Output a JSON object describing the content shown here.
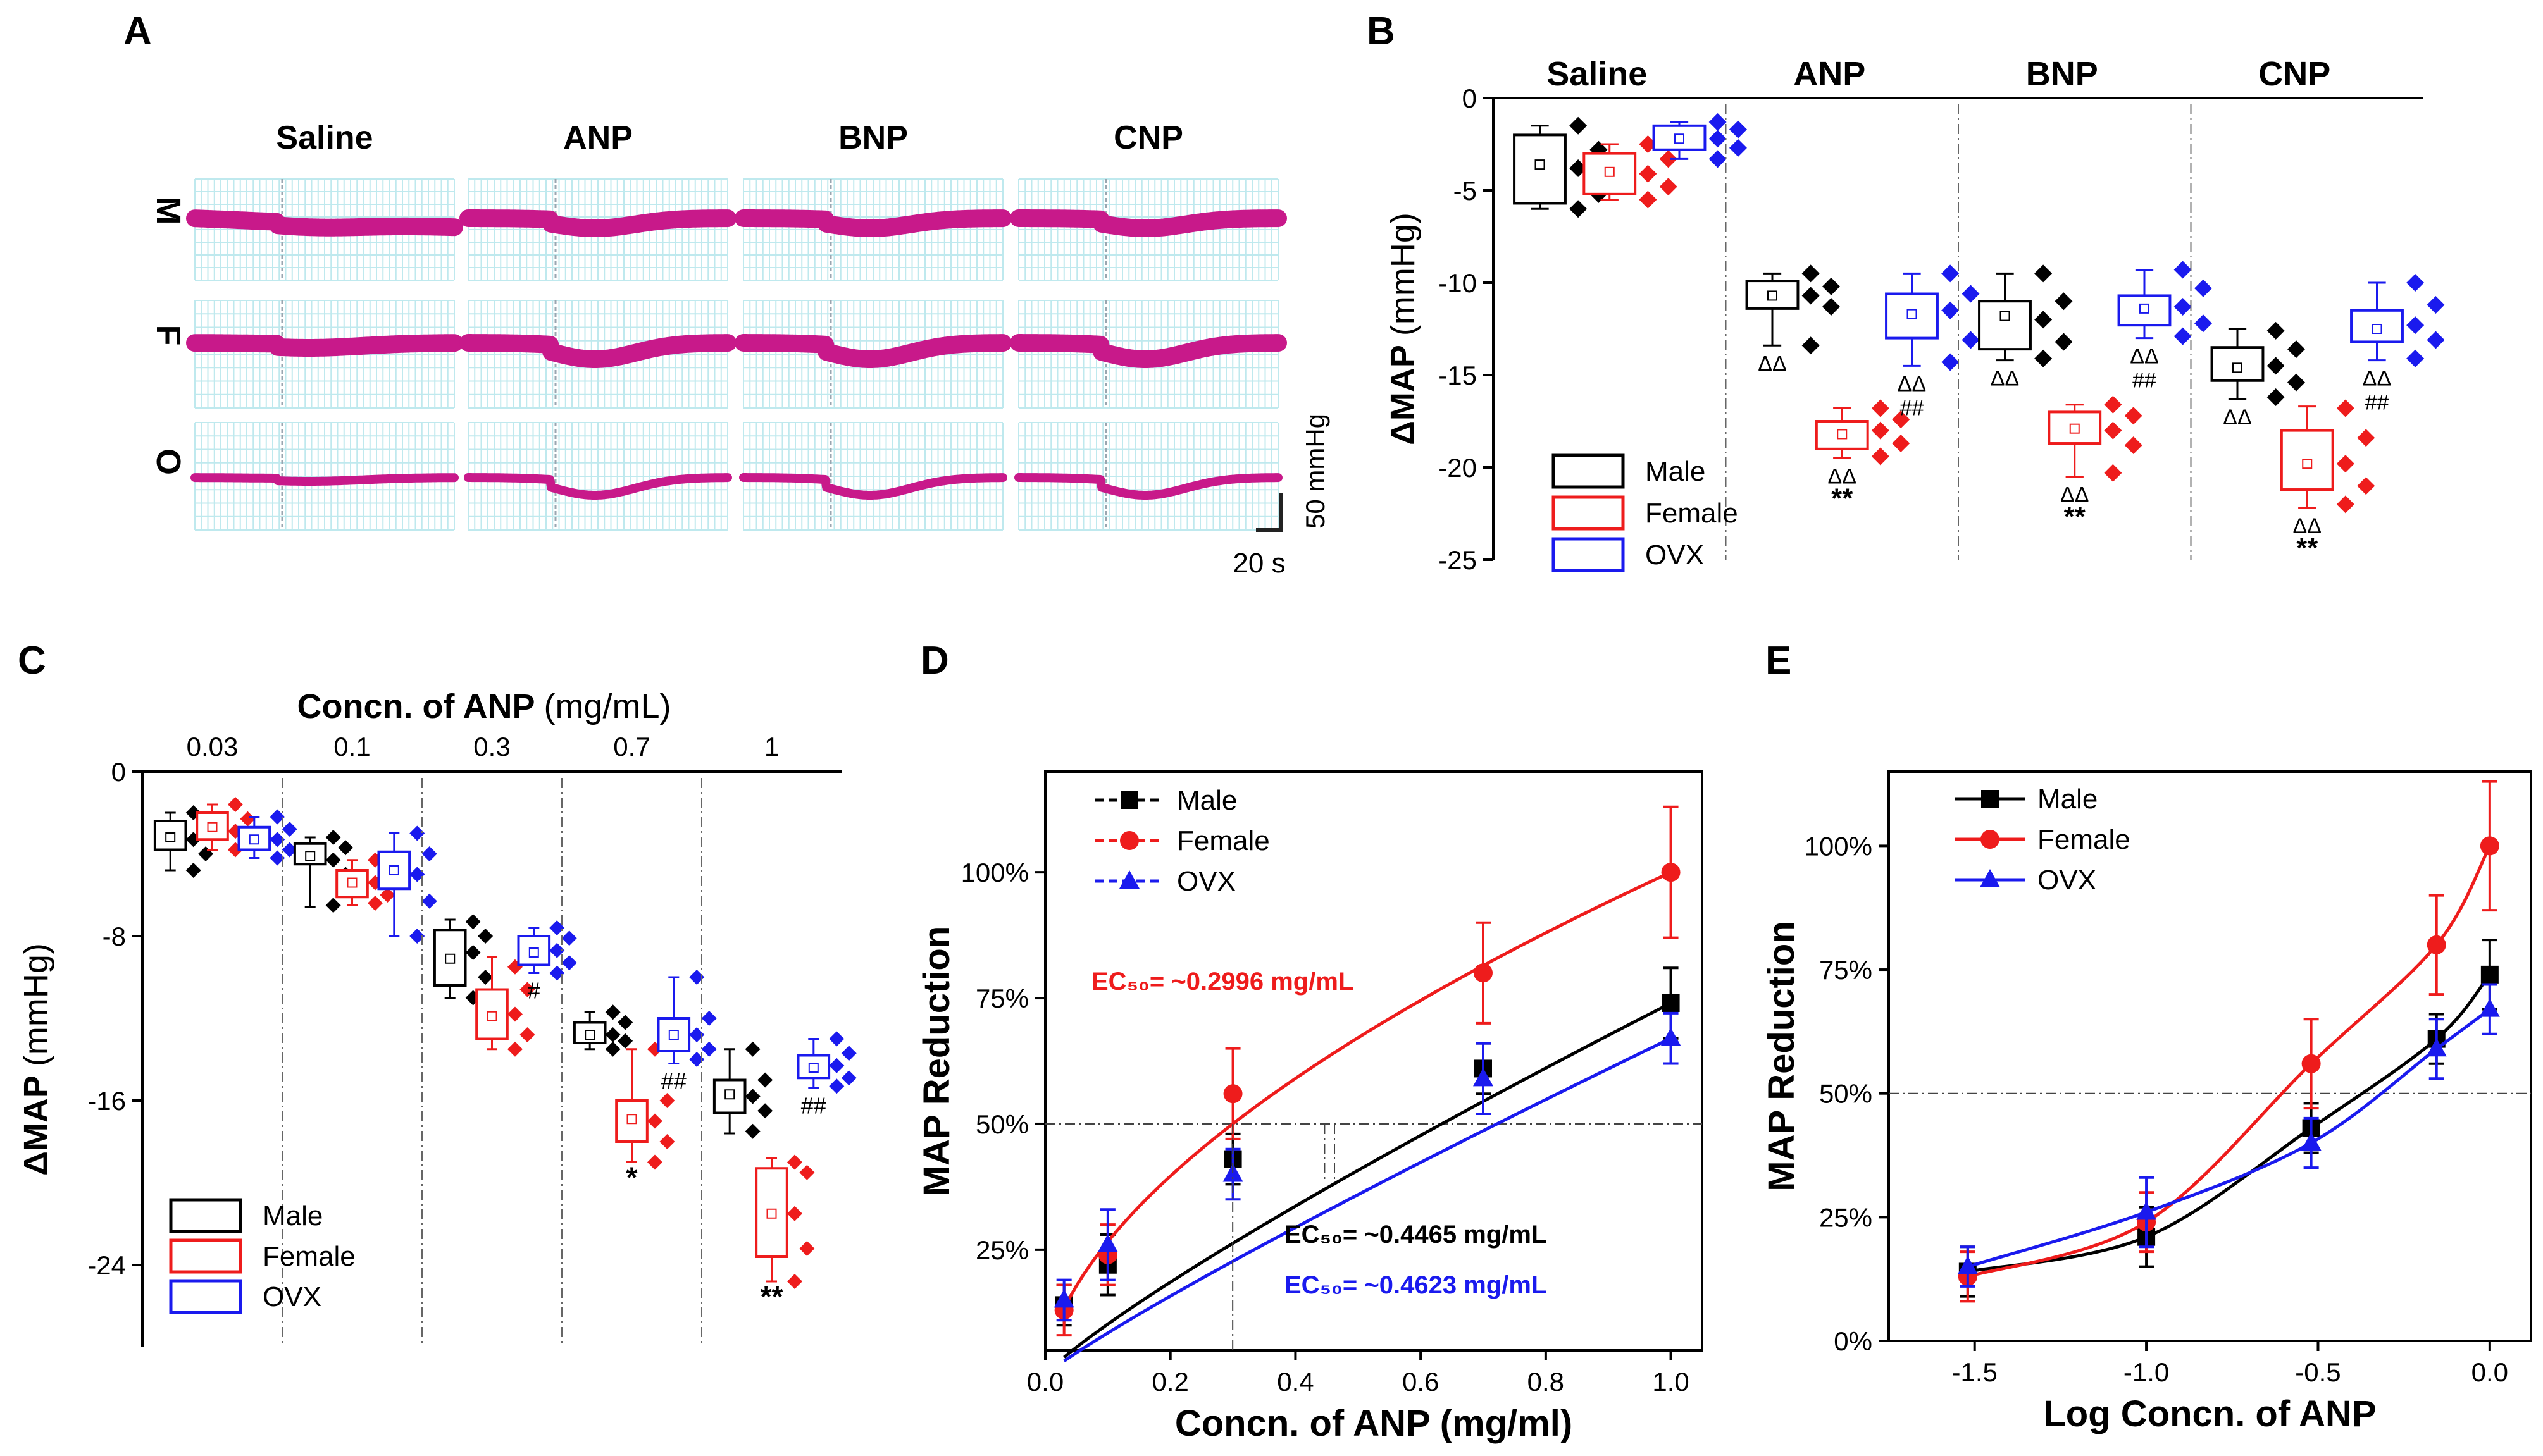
{
  "colors": {
    "male": "#000000",
    "female": "#ee1c1c",
    "ovx": "#1a1aee",
    "trace": "#c8198a",
    "grid": "#bfe9ee"
  },
  "panels": {
    "A": {
      "letter": "A",
      "columns": [
        "Saline",
        "ANP",
        "BNP",
        "CNP"
      ],
      "rows": [
        "M",
        "F",
        "O"
      ],
      "scale_y": "50 mmHg",
      "scale_x": "20 s"
    },
    "B": {
      "letter": "B"
    },
    "C": {
      "letter": "C"
    },
    "D": {
      "letter": "D"
    },
    "E": {
      "letter": "E"
    }
  },
  "chart_data": [
    {
      "id": "B",
      "type": "box",
      "ylabel": "ΔMAP (mmHg)",
      "ylim": [
        -25,
        0
      ],
      "yticks": [
        0,
        -5,
        -10,
        -15,
        -20,
        -25
      ],
      "categories": [
        "Saline",
        "ANP",
        "BNP",
        "CNP"
      ],
      "legend": [
        "Male",
        "Female",
        "OVX"
      ],
      "groups": [
        {
          "label": "Saline",
          "boxes": [
            {
              "series": "Male",
              "mean": -3.6,
              "q1": -5.7,
              "q3": -2.0,
              "min": -6.0,
              "max": -1.5,
              "points": [
                -1.5,
                -2.8,
                -3.8,
                -5.2,
                -6.0
              ],
              "annot": ""
            },
            {
              "series": "Female",
              "mean": -4.0,
              "q1": -5.2,
              "q3": -3.0,
              "min": -5.5,
              "max": -2.5,
              "points": [
                -2.5,
                -3.3,
                -4.1,
                -4.8,
                -5.5
              ],
              "annot": ""
            },
            {
              "series": "OVX",
              "mean": -2.2,
              "q1": -2.8,
              "q3": -1.5,
              "min": -3.3,
              "max": -1.3,
              "points": [
                -1.3,
                -1.7,
                -2.2,
                -2.7,
                -3.3
              ],
              "annot": ""
            }
          ]
        },
        {
          "label": "ANP",
          "boxes": [
            {
              "series": "Male",
              "mean": -10.7,
              "q1": -11.4,
              "q3": -9.9,
              "min": -13.4,
              "max": -9.5,
              "points": [
                -9.5,
                -10.2,
                -10.7,
                -11.3,
                -13.4
              ],
              "annot": "ΔΔ"
            },
            {
              "series": "Female",
              "mean": -18.2,
              "q1": -19.0,
              "q3": -17.5,
              "min": -19.5,
              "max": -16.8,
              "points": [
                -16.8,
                -17.4,
                -18.0,
                -18.7,
                -19.4
              ],
              "annot": "ΔΔ\n**"
            },
            {
              "series": "OVX",
              "mean": -11.7,
              "q1": -13.0,
              "q3": -10.6,
              "min": -14.5,
              "max": -9.5,
              "points": [
                -9.5,
                -10.6,
                -11.5,
                -13.1,
                -14.3
              ],
              "annot": "ΔΔ\n##"
            }
          ]
        },
        {
          "label": "BNP",
          "boxes": [
            {
              "series": "Male",
              "mean": -11.8,
              "q1": -13.6,
              "q3": -11.0,
              "min": -14.2,
              "max": -9.5,
              "points": [
                -9.5,
                -11.0,
                -12.0,
                -13.2,
                -14.1
              ],
              "annot": "ΔΔ"
            },
            {
              "series": "Female",
              "mean": -17.9,
              "q1": -18.7,
              "q3": -17.0,
              "min": -20.5,
              "max": -16.6,
              "points": [
                -16.6,
                -17.2,
                -18.0,
                -18.8,
                -20.3
              ],
              "annot": "ΔΔ\n**"
            },
            {
              "series": "OVX",
              "mean": -11.4,
              "q1": -12.3,
              "q3": -10.7,
              "min": -13.0,
              "max": -9.3,
              "points": [
                -9.3,
                -10.3,
                -11.3,
                -12.2,
                -12.9
              ],
              "annot": "ΔΔ\n##"
            }
          ]
        },
        {
          "label": "CNP",
          "boxes": [
            {
              "series": "Male",
              "mean": -14.6,
              "q1": -15.3,
              "q3": -13.5,
              "min": -16.3,
              "max": -12.5,
              "points": [
                -12.6,
                -13.6,
                -14.5,
                -15.4,
                -16.2
              ],
              "annot": "ΔΔ"
            },
            {
              "series": "Female",
              "mean": -19.8,
              "q1": -21.2,
              "q3": -18.0,
              "min": -22.2,
              "max": -16.7,
              "points": [
                -16.8,
                -18.4,
                -19.8,
                -21.0,
                -22.0
              ],
              "annot": "ΔΔ\n**"
            },
            {
              "series": "OVX",
              "mean": -12.5,
              "q1": -13.2,
              "q3": -11.5,
              "min": -14.2,
              "max": -10.0,
              "points": [
                -10.0,
                -11.2,
                -12.3,
                -13.1,
                -14.1
              ],
              "annot": "ΔΔ\n##"
            }
          ]
        }
      ]
    },
    {
      "id": "C",
      "type": "box",
      "title": "Concn. of ANP (mg/mL)",
      "ylabel": "ΔMAP (mmHg)",
      "ylim": [
        -28,
        0
      ],
      "yticks": [
        0,
        -8,
        -16,
        -24
      ],
      "categories": [
        "0.03",
        "0.1",
        "0.3",
        "0.7",
        "1"
      ],
      "legend": [
        "Male",
        "Female",
        "OVX"
      ],
      "groups": [
        {
          "label": "0.03",
          "boxes": [
            {
              "series": "Male",
              "mean": -3.2,
              "q1": -3.8,
              "q3": -2.4,
              "min": -4.8,
              "max": -2.0,
              "points": [
                -2.0,
                -2.6,
                -3.3,
                -4.0,
                -4.8
              ],
              "annot": ""
            },
            {
              "series": "Female",
              "mean": -2.7,
              "q1": -3.3,
              "q3": -2.0,
              "min": -3.8,
              "max": -1.6,
              "points": [
                -1.6,
                -2.3,
                -2.9,
                -3.4,
                -3.8
              ],
              "annot": ""
            },
            {
              "series": "OVX",
              "mean": -3.3,
              "q1": -3.8,
              "q3": -2.7,
              "min": -4.2,
              "max": -2.2,
              "points": [
                -2.2,
                -2.8,
                -3.3,
                -3.8,
                -4.2
              ],
              "annot": ""
            }
          ]
        },
        {
          "label": "0.1",
          "boxes": [
            {
              "series": "Male",
              "mean": -4.1,
              "q1": -4.5,
              "q3": -3.5,
              "min": -6.6,
              "max": -3.2,
              "points": [
                -3.2,
                -3.7,
                -4.3,
                -5.0,
                -6.5
              ],
              "annot": ""
            },
            {
              "series": "Female",
              "mean": -5.4,
              "q1": -6.1,
              "q3": -4.8,
              "min": -6.5,
              "max": -4.3,
              "points": [
                -4.3,
                -4.9,
                -5.4,
                -6.0,
                -6.4
              ],
              "annot": ""
            },
            {
              "series": "OVX",
              "mean": -4.8,
              "q1": -5.7,
              "q3": -3.9,
              "min": -8.0,
              "max": -3.0,
              "points": [
                -3.0,
                -4.0,
                -5.0,
                -6.3,
                -8.0
              ],
              "annot": ""
            }
          ]
        },
        {
          "label": "0.3",
          "boxes": [
            {
              "series": "Male",
              "mean": -9.1,
              "q1": -10.4,
              "q3": -7.7,
              "min": -11.0,
              "max": -7.2,
              "points": [
                -7.3,
                -8.0,
                -8.8,
                -10.0,
                -11.0
              ],
              "annot": ""
            },
            {
              "series": "Female",
              "mean": -11.9,
              "q1": -13.0,
              "q3": -10.6,
              "min": -13.5,
              "max": -9.0,
              "points": [
                -9.5,
                -10.6,
                -11.8,
                -12.8,
                -13.5
              ],
              "annot": ""
            },
            {
              "series": "OVX",
              "mean": -8.8,
              "q1": -9.4,
              "q3": -8.0,
              "min": -9.8,
              "max": -7.6,
              "points": [
                -7.6,
                -8.1,
                -8.7,
                -9.3,
                -9.8
              ],
              "annot": "#"
            }
          ]
        },
        {
          "label": "0.7",
          "boxes": [
            {
              "series": "Male",
              "mean": -12.8,
              "q1": -13.2,
              "q3": -12.2,
              "min": -13.5,
              "max": -11.7,
              "points": [
                -11.7,
                -12.2,
                -12.8,
                -13.1,
                -13.5
              ],
              "annot": ""
            },
            {
              "series": "Female",
              "mean": -16.9,
              "q1": -18.0,
              "q3": -16.0,
              "min": -19.0,
              "max": -13.5,
              "points": [
                -13.5,
                -16.0,
                -17.0,
                -18.0,
                -19.0
              ],
              "annot": "*"
            },
            {
              "series": "OVX",
              "mean": -12.8,
              "q1": -13.6,
              "q3": -12.0,
              "min": -14.2,
              "max": -10.0,
              "points": [
                -10.0,
                -12.0,
                -12.8,
                -13.5,
                -14.0
              ],
              "annot": "##"
            }
          ]
        },
        {
          "label": "1",
          "boxes": [
            {
              "series": "Male",
              "mean": -15.7,
              "q1": -16.6,
              "q3": -15.0,
              "min": -17.6,
              "max": -13.5,
              "points": [
                -13.5,
                -15.0,
                -15.8,
                -16.5,
                -17.5
              ],
              "annot": ""
            },
            {
              "series": "Female",
              "mean": -21.5,
              "q1": -23.6,
              "q3": -19.3,
              "min": -24.8,
              "max": -18.8,
              "points": [
                -19.0,
                -19.5,
                -21.5,
                -23.2,
                -24.8
              ],
              "annot": "**"
            },
            {
              "series": "OVX",
              "mean": -14.4,
              "q1": -14.9,
              "q3": -13.8,
              "min": -15.4,
              "max": -13.0,
              "points": [
                -13.0,
                -13.7,
                -14.3,
                -14.9,
                -15.3
              ],
              "annot": "##"
            }
          ]
        }
      ]
    },
    {
      "id": "D",
      "type": "line",
      "xlabel": "Concn. of ANP (mg/ml)",
      "ylabel": "MAP Reduction",
      "xlim": [
        0.0,
        1.05
      ],
      "ylim": [
        0.05,
        1.2
      ],
      "xticks": [
        "0.0",
        "0.2",
        "0.4",
        "0.6",
        "0.8",
        "1.0"
      ],
      "yticks": [
        "25%",
        "50%",
        "75%",
        "100%"
      ],
      "x": [
        0.03,
        0.1,
        0.3,
        0.7,
        1.0
      ],
      "series": [
        {
          "name": "Male",
          "marker": "square",
          "values": [
            0.14,
            0.22,
            0.43,
            0.61,
            0.74
          ],
          "errors": [
            0.04,
            0.06,
            0.05,
            0.05,
            0.07
          ],
          "fit": {
            "type": "power",
            "ec50": 0.4465,
            "top": 0.74
          }
        },
        {
          "name": "Female",
          "marker": "circle",
          "values": [
            0.13,
            0.24,
            0.56,
            0.8,
            1.0
          ],
          "errors": [
            0.05,
            0.06,
            0.09,
            0.1,
            0.13
          ],
          "fit": {
            "type": "power",
            "ec50": 0.2996,
            "top": 1.0
          }
        },
        {
          "name": "OVX",
          "marker": "triangle",
          "values": [
            0.15,
            0.26,
            0.4,
            0.59,
            0.67
          ],
          "errors": [
            0.04,
            0.07,
            0.05,
            0.07,
            0.05
          ],
          "fit": {
            "type": "power",
            "ec50": 0.4623,
            "top": 0.67
          }
        }
      ],
      "annotations": [
        {
          "text": "EC₅₀= ~0.2996 mg/mL",
          "color": "#ee1c1c"
        },
        {
          "text": "EC₅₀= ~0.4465 mg/mL",
          "color": "#000000"
        },
        {
          "text": "EC₅₀= ~0.4623 mg/mL",
          "color": "#1a1aee"
        }
      ]
    },
    {
      "id": "E",
      "type": "line",
      "xlabel": "Log Concn. of ANP",
      "ylabel": "MAP Reduction",
      "xlim": [
        -1.75,
        0.12
      ],
      "ylim": [
        0.0,
        1.15
      ],
      "xticks": [
        "-1.5",
        "-1.0",
        "-0.5",
        "0.0"
      ],
      "yticks": [
        "0%",
        "25%",
        "50%",
        "75%",
        "100%"
      ],
      "x": [
        -1.52,
        -1.0,
        -0.52,
        -0.155,
        0.0
      ],
      "series": [
        {
          "name": "Male",
          "marker": "square",
          "values": [
            0.14,
            0.21,
            0.43,
            0.61,
            0.74
          ],
          "errors": [
            0.05,
            0.06,
            0.05,
            0.05,
            0.07
          ]
        },
        {
          "name": "Female",
          "marker": "circle",
          "values": [
            0.13,
            0.24,
            0.56,
            0.8,
            1.0
          ],
          "errors": [
            0.05,
            0.06,
            0.09,
            0.1,
            0.13
          ]
        },
        {
          "name": "OVX",
          "marker": "triangle",
          "values": [
            0.15,
            0.26,
            0.4,
            0.59,
            0.67
          ],
          "errors": [
            0.04,
            0.07,
            0.05,
            0.06,
            0.05
          ]
        }
      ]
    }
  ]
}
